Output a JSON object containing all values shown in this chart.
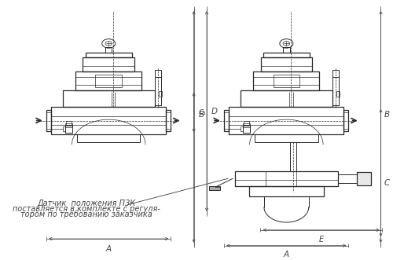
{
  "bg_color": "#ffffff",
  "line_color": "#2a2a2a",
  "dim_color": "#444444",
  "text_color": "#333333",
  "fig_width": 5.0,
  "fig_height": 3.31,
  "dpi": 100,
  "annotation_text_line1": "Датчик  положения ПЗК",
  "annotation_text_line2": "поставляется в комплекте с регуля-",
  "annotation_text_line3": "тором по требованию заказчика",
  "annotation_fontsize": 7.0
}
